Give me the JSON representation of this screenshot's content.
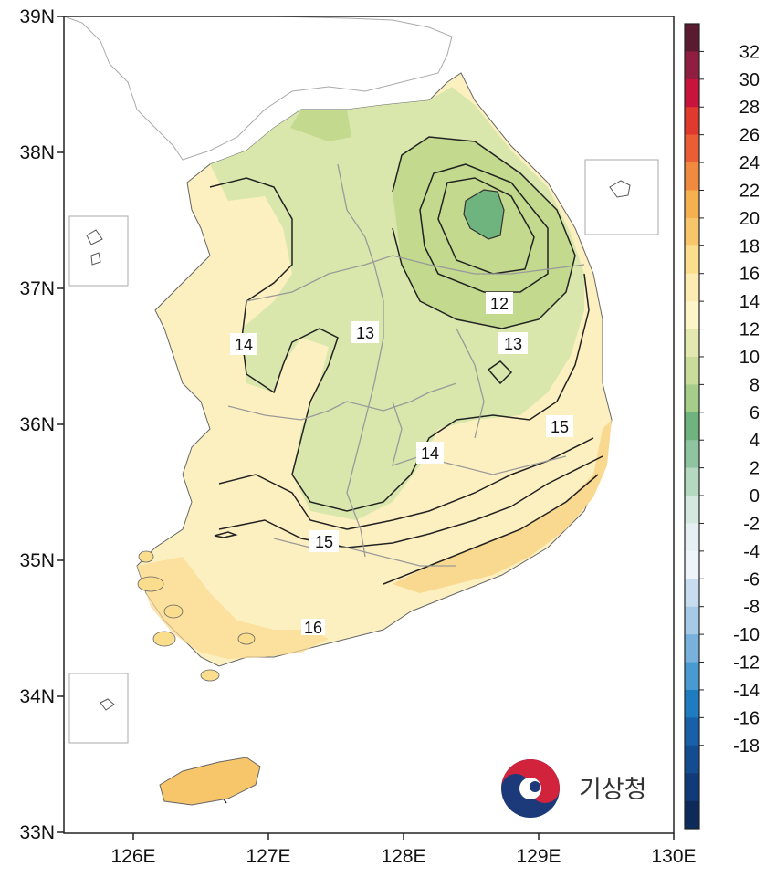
{
  "map": {
    "lat_labels": [
      "39N",
      "38N",
      "37N",
      "36N",
      "35N",
      "34N",
      "33N"
    ],
    "lon_labels": [
      "126E",
      "127E",
      "128E",
      "129E",
      "130E"
    ],
    "contour_labels": [
      "12",
      "13",
      "13",
      "14",
      "14",
      "15",
      "15",
      "16"
    ],
    "colorbar_labels": [
      "32",
      "30",
      "28",
      "26",
      "24",
      "22",
      "20",
      "18",
      "16",
      "14",
      "12",
      "10",
      "8",
      "6",
      "4",
      "2",
      "0",
      "-2",
      "-4",
      "-6",
      "-8",
      "-10",
      "-12",
      "-14",
      "-16",
      "-18"
    ],
    "colorbar_colors": [
      "#5a1a30",
      "#8f1e40",
      "#c8143c",
      "#e03a2e",
      "#ea5e36",
      "#f08a3e",
      "#f5b050",
      "#f8c66a",
      "#fbdd8e",
      "#fcecb2",
      "#fdf4c8",
      "#e2e8b0",
      "#c9dc9a",
      "#a7cd8a",
      "#6fb47e",
      "#8fc4a0",
      "#b4d8c0",
      "#d4e8e0",
      "#e6f0f2",
      "#eef4fa",
      "#c8dcf0",
      "#a6c9e6",
      "#78b2dc",
      "#4a9ad2",
      "#1f7cc0",
      "#1860a8",
      "#144c90",
      "#103a78",
      "#0c2a5a"
    ],
    "agency_name": "기상청"
  }
}
